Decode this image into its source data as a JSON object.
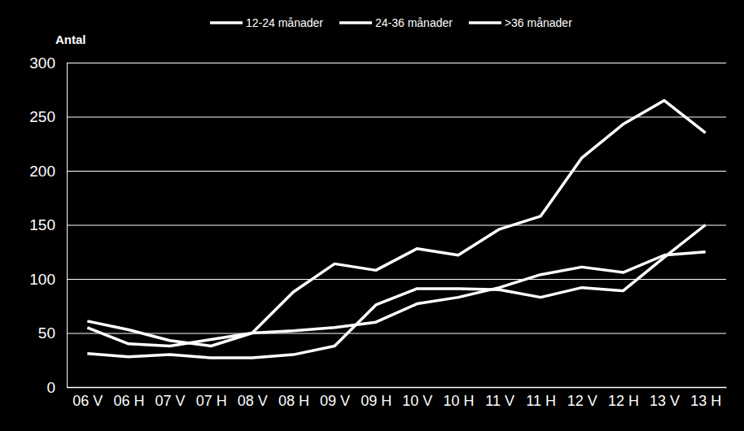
{
  "chart_data": {
    "type": "line",
    "y_label": "Antal",
    "categories": [
      "06 V",
      "06 H",
      "07 V",
      "07 H",
      "08 V",
      "08 H",
      "09 V",
      "09 H",
      "10 V",
      "10 H",
      "11 V",
      "11 H",
      "12 V",
      "12 H",
      "13 V",
      "13 H"
    ],
    "series": [
      {
        "name": "12-24 månader",
        "color": "#ffffff",
        "values": [
          55,
          40,
          38,
          44,
          50,
          88,
          114,
          108,
          128,
          122,
          146,
          158,
          212,
          243,
          265,
          235
        ]
      },
      {
        "name": "24-36 månader",
        "color": "#ffffff",
        "values": [
          61,
          53,
          43,
          38,
          50,
          52,
          55,
          60,
          77,
          83,
          92,
          104,
          111,
          106,
          122,
          125
        ]
      },
      {
        "name": ">36 månader",
        "color": "#ffffff",
        "values": [
          31,
          28,
          30,
          27,
          27,
          30,
          38,
          76,
          91,
          91,
          90,
          83,
          92,
          89,
          120,
          150
        ]
      }
    ],
    "ylim": [
      0,
      300
    ],
    "yticks": [
      0,
      50,
      100,
      150,
      200,
      250,
      300
    ],
    "grid": true,
    "legend": "top"
  }
}
